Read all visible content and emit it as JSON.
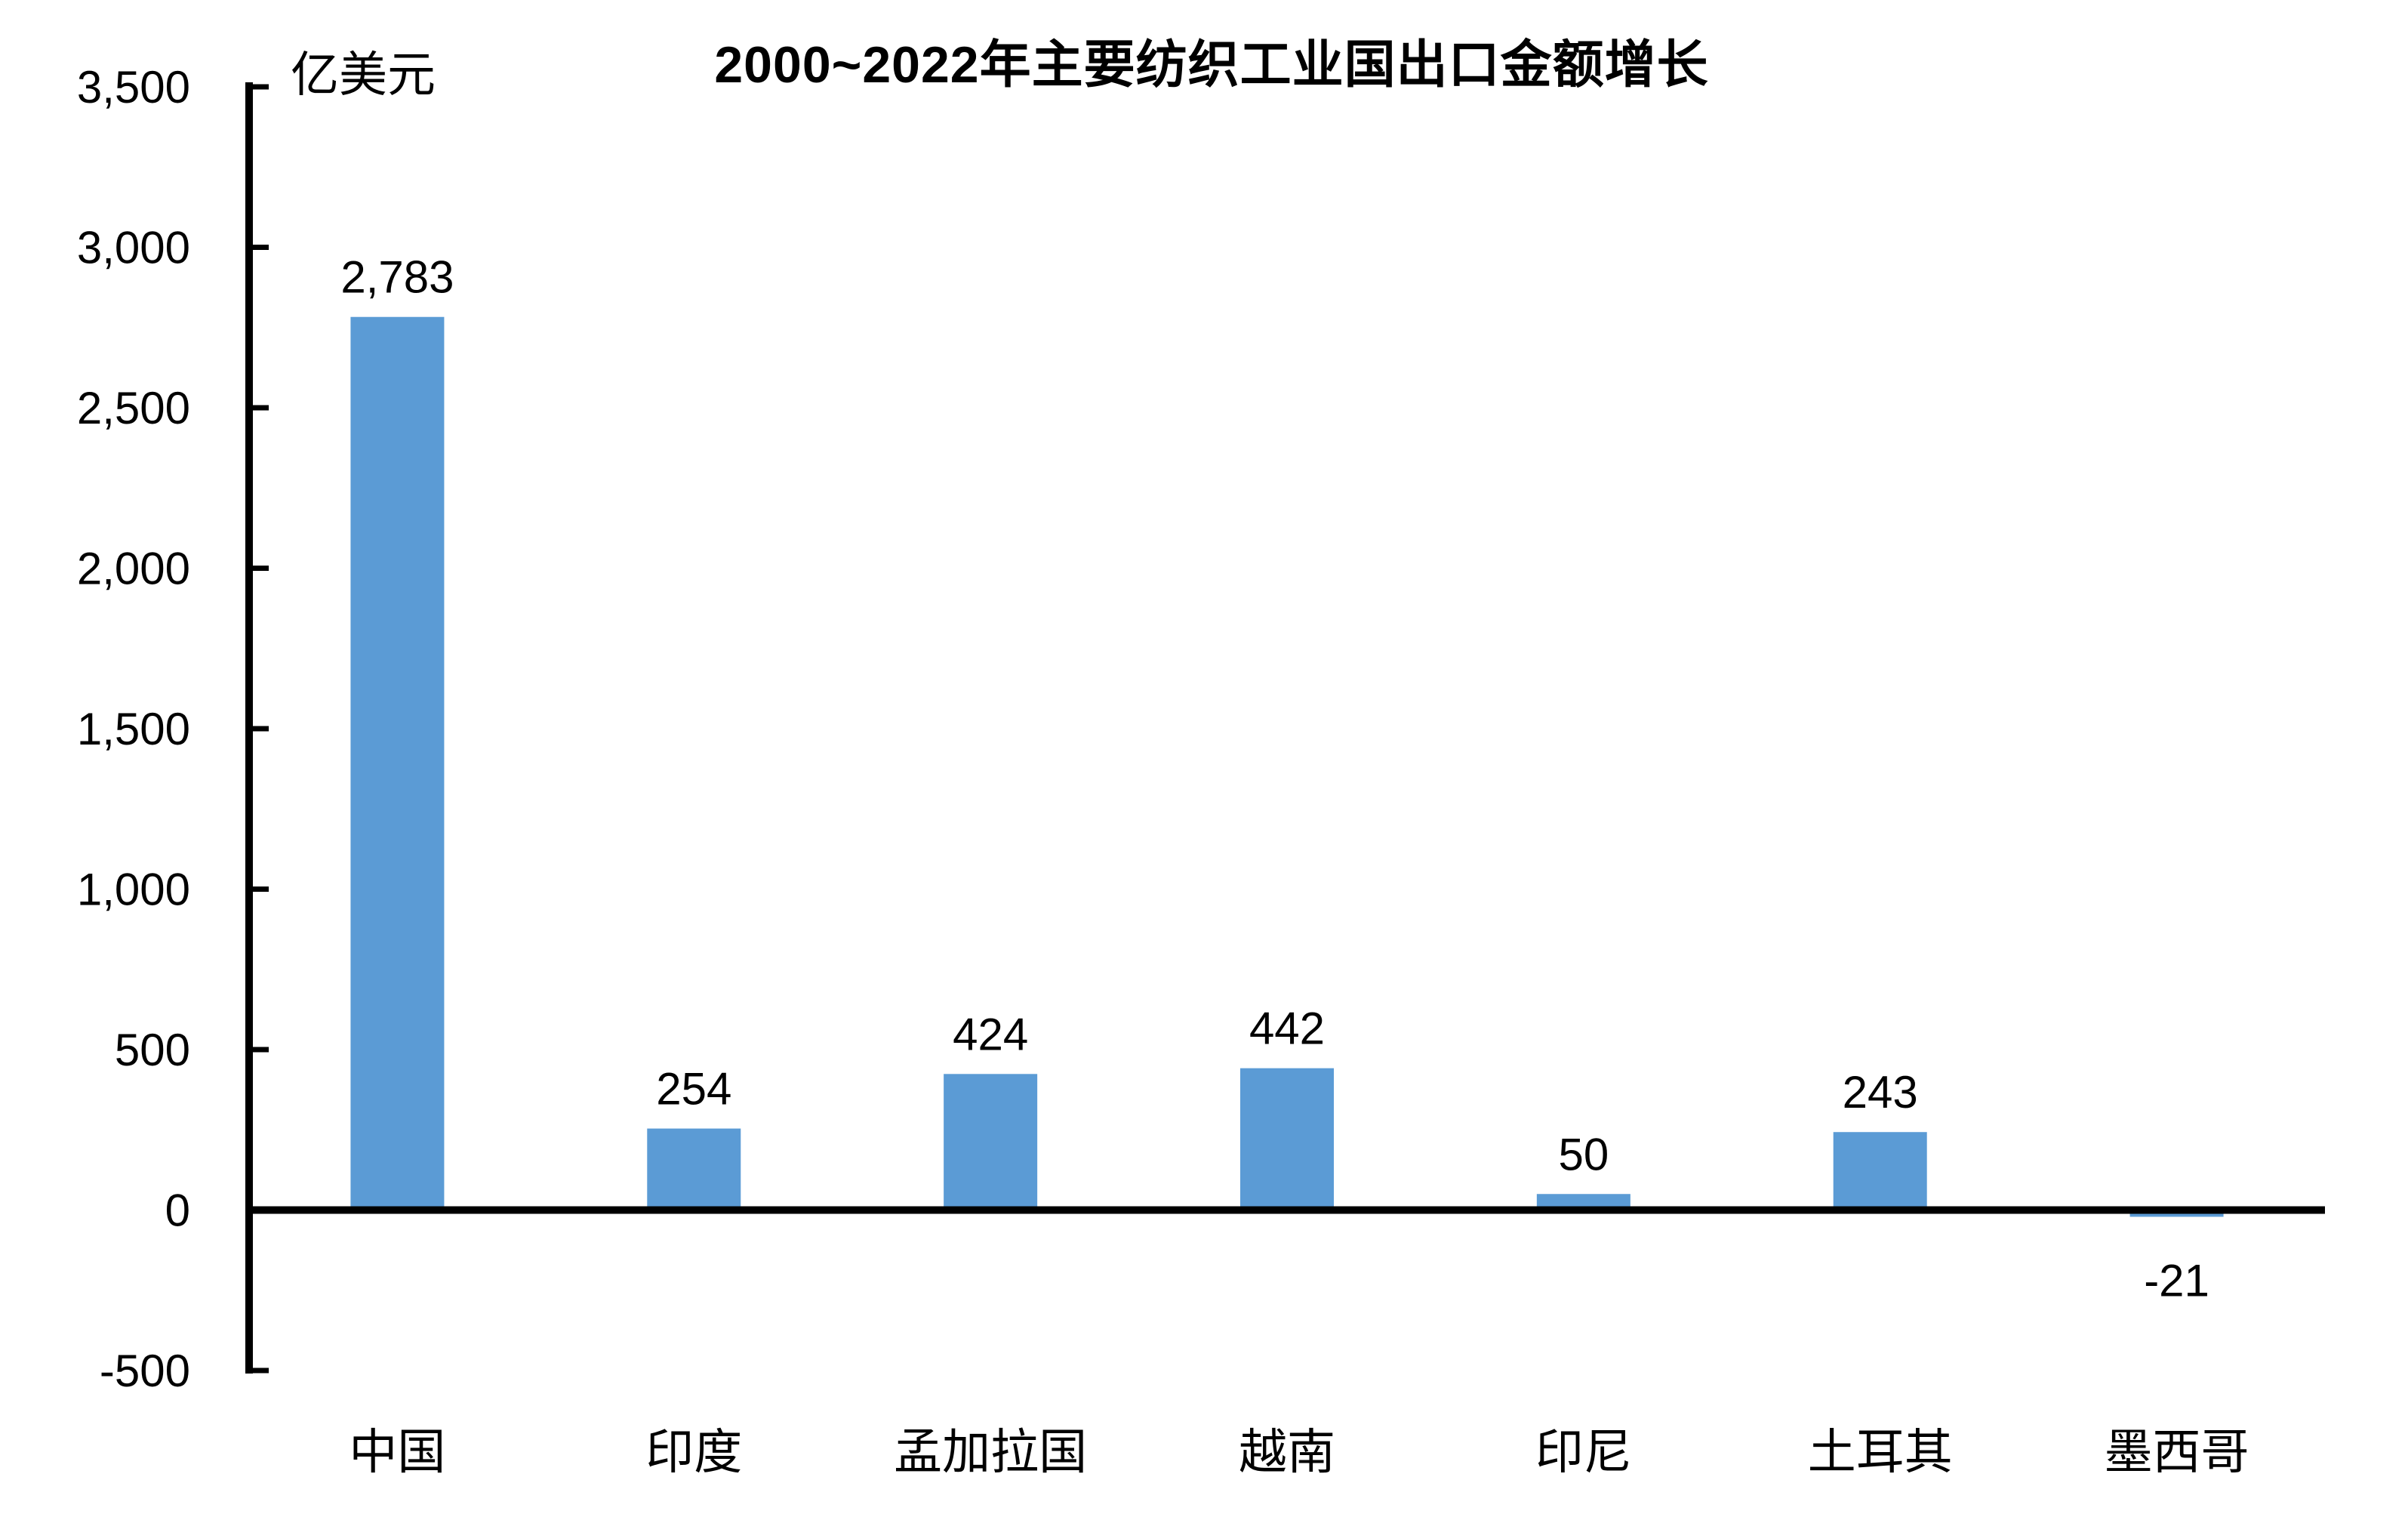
{
  "chart_data": {
    "type": "bar",
    "title": "2000~2022年主要纺织工业国出口金额增长",
    "unit_label": "亿美元",
    "categories": [
      "中国",
      "印度",
      "孟加拉国",
      "越南",
      "印尼",
      "土耳其",
      "墨西哥"
    ],
    "values": [
      2783,
      254,
      424,
      442,
      50,
      243,
      -21
    ],
    "value_labels": [
      "2,783",
      "254",
      "424",
      "442",
      "50",
      "243",
      "-21"
    ],
    "y_axis": {
      "min": -500,
      "max": 3500,
      "step": 500,
      "tick_labels": [
        "3,500",
        "3,000",
        "2,500",
        "2,000",
        "1,500",
        "1,000",
        "500",
        "0",
        "-500"
      ]
    },
    "bar_color": "#5B9BD5",
    "axis_color": "#000000",
    "grid": false,
    "legend_position": "none"
  }
}
